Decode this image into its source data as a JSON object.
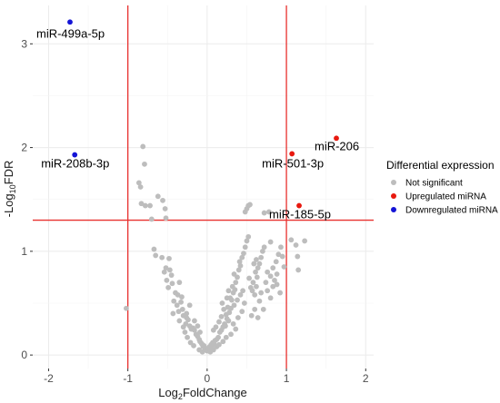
{
  "chart_data": {
    "type": "scatter",
    "xlabel": {
      "base": "Log",
      "sub": "2",
      "rest": "FoldChange"
    },
    "ylabel": {
      "prefix": "-Log",
      "sub": "10",
      "rest": "FDR"
    },
    "xlim": [
      -2.2,
      2.1
    ],
    "ylim": [
      -0.13,
      3.37
    ],
    "xticks": [
      -2,
      -1,
      0,
      1,
      2
    ],
    "yticks": [
      0,
      1,
      2,
      3
    ],
    "grid": true,
    "thresholds": {
      "x": [
        -1,
        1
      ],
      "y": [
        1.3
      ],
      "color": "#e8312f"
    },
    "legend": {
      "title": "Differential expression",
      "position": "right",
      "entries": [
        {
          "label": "Not significant",
          "color": "#bdbdbd"
        },
        {
          "label": "Upregulated miRNA",
          "color": "#e8190f"
        },
        {
          "label": "Downregulated miRNA",
          "color": "#1414d6"
        }
      ]
    },
    "series": [
      {
        "name": "Not significant",
        "color": "#bdbdbd",
        "points": [
          [
            -1.02,
            0.45
          ],
          [
            -0.81,
            2.01
          ],
          [
            -0.79,
            1.84
          ],
          [
            -0.86,
            1.66
          ],
          [
            -0.84,
            1.62
          ],
          [
            -0.83,
            1.46
          ],
          [
            -0.78,
            1.44
          ],
          [
            -0.72,
            1.44
          ],
          [
            -0.7,
            1.31
          ],
          [
            -0.62,
            1.53
          ],
          [
            -0.56,
            1.49
          ],
          [
            -0.53,
            1.41
          ],
          [
            -0.52,
            1.32
          ],
          [
            -0.67,
            1.02
          ],
          [
            -0.65,
            0.96
          ],
          [
            -0.57,
            0.94
          ],
          [
            -0.48,
            0.93
          ],
          [
            -0.52,
            0.84
          ],
          [
            -0.47,
            0.82
          ],
          [
            -0.54,
            0.8
          ],
          [
            -0.51,
            0.72
          ],
          [
            -0.44,
            0.69
          ],
          [
            -0.49,
            0.65
          ],
          [
            -0.4,
            0.6
          ],
          [
            -0.37,
            0.58
          ],
          [
            -0.42,
            0.52
          ],
          [
            -0.33,
            0.51
          ],
          [
            -0.31,
            0.44
          ],
          [
            -0.36,
            0.42
          ],
          [
            -0.3,
            0.38
          ],
          [
            -0.26,
            0.36
          ],
          [
            -0.24,
            0.34
          ],
          [
            -0.27,
            0.3
          ],
          [
            -0.22,
            0.28
          ],
          [
            -0.2,
            0.25
          ],
          [
            -0.18,
            0.26
          ],
          [
            -0.16,
            0.24
          ],
          [
            -0.14,
            0.2
          ],
          [
            -0.12,
            0.18
          ],
          [
            -0.1,
            0.15
          ],
          [
            -0.09,
            0.13
          ],
          [
            -0.07,
            0.11
          ],
          [
            -0.06,
            0.1
          ],
          [
            -0.05,
            0.08
          ],
          [
            -0.04,
            0.09
          ],
          [
            -0.03,
            0.07
          ],
          [
            -0.02,
            0.06
          ],
          [
            -0.01,
            0.05
          ],
          [
            0.0,
            0.04
          ],
          [
            0.01,
            0.05
          ],
          [
            0.02,
            0.06
          ],
          [
            0.03,
            0.08
          ],
          [
            0.04,
            0.07
          ],
          [
            0.05,
            0.1
          ],
          [
            0.06,
            0.09
          ],
          [
            0.07,
            0.12
          ],
          [
            0.09,
            0.1
          ],
          [
            0.1,
            0.14
          ],
          [
            0.12,
            0.15
          ],
          [
            0.14,
            0.17
          ],
          [
            0.16,
            0.22
          ],
          [
            0.18,
            0.24
          ],
          [
            0.2,
            0.27
          ],
          [
            0.22,
            0.3
          ],
          [
            0.23,
            0.28
          ],
          [
            0.25,
            0.35
          ],
          [
            0.27,
            0.33
          ],
          [
            0.24,
            0.39
          ],
          [
            0.28,
            0.41
          ],
          [
            0.26,
            0.46
          ],
          [
            0.3,
            0.45
          ],
          [
            0.31,
            0.53
          ],
          [
            0.29,
            0.55
          ],
          [
            0.33,
            0.6
          ],
          [
            0.35,
            0.63
          ],
          [
            0.32,
            0.66
          ],
          [
            0.36,
            0.7
          ],
          [
            0.38,
            0.75
          ],
          [
            0.34,
            0.78
          ],
          [
            0.4,
            0.82
          ],
          [
            0.42,
            0.86
          ],
          [
            0.41,
            0.9
          ],
          [
            0.44,
            0.94
          ],
          [
            0.46,
            0.98
          ],
          [
            0.48,
            1.04
          ],
          [
            0.5,
            1.1
          ],
          [
            0.52,
            1.14
          ],
          [
            0.5,
            1.41
          ],
          [
            0.48,
            1.38
          ],
          [
            0.52,
            1.44
          ],
          [
            0.54,
            1.45
          ],
          [
            0.55,
            0.65
          ],
          [
            0.57,
            0.62
          ],
          [
            0.6,
            0.58
          ],
          [
            0.62,
            0.66
          ],
          [
            0.63,
            0.75
          ],
          [
            0.64,
            0.84
          ],
          [
            0.66,
            0.88
          ],
          [
            0.68,
            0.94
          ],
          [
            0.7,
            1.0
          ],
          [
            0.72,
            1.04
          ],
          [
            0.72,
            1.37
          ],
          [
            0.78,
            1.38
          ],
          [
            0.8,
            1.09
          ],
          [
            0.8,
            0.55
          ],
          [
            0.83,
            0.66
          ],
          [
            0.85,
            0.72
          ],
          [
            0.83,
            0.84
          ],
          [
            0.87,
            0.9
          ],
          [
            0.9,
            0.97
          ],
          [
            0.93,
            1.04
          ],
          [
            0.95,
            0.95
          ],
          [
            0.97,
            0.85
          ],
          [
            1.06,
            1.11
          ],
          [
            1.12,
            1.06
          ],
          [
            1.14,
            0.95
          ],
          [
            1.15,
            0.82
          ],
          [
            1.23,
            1.1
          ],
          [
            -0.16,
            0.33
          ],
          [
            -0.12,
            0.28
          ],
          [
            -0.09,
            0.22
          ],
          [
            0.08,
            0.24
          ],
          [
            0.11,
            0.27
          ],
          [
            0.15,
            0.32
          ],
          [
            0.18,
            0.37
          ],
          [
            0.21,
            0.44
          ],
          [
            0.19,
            0.5
          ],
          [
            0.25,
            0.55
          ],
          [
            0.27,
            0.62
          ],
          [
            0.34,
            0.48
          ],
          [
            0.38,
            0.53
          ],
          [
            0.42,
            0.58
          ],
          [
            0.44,
            0.42
          ],
          [
            0.39,
            0.36
          ],
          [
            0.47,
            0.5
          ],
          [
            0.45,
            0.62
          ],
          [
            0.53,
            0.74
          ],
          [
            0.58,
            0.7
          ],
          [
            0.61,
            0.8
          ],
          [
            0.66,
            0.52
          ],
          [
            0.71,
            0.44
          ],
          [
            -0.28,
            0.22
          ],
          [
            -0.25,
            0.17
          ],
          [
            -0.21,
            0.12
          ],
          [
            -0.17,
            0.09
          ],
          [
            -0.1,
            0.05
          ],
          [
            -0.06,
            0.03
          ],
          [
            0.04,
            0.03
          ],
          [
            0.08,
            0.05
          ],
          [
            0.12,
            0.08
          ],
          [
            0.15,
            0.1
          ],
          [
            0.2,
            0.13
          ],
          [
            0.24,
            0.17
          ],
          [
            -0.32,
            0.56
          ],
          [
            -0.38,
            0.48
          ],
          [
            -0.35,
            0.7
          ],
          [
            -0.45,
            0.77
          ],
          [
            -0.43,
            0.4
          ],
          [
            -0.35,
            0.33
          ],
          [
            -0.3,
            0.27
          ],
          [
            -0.26,
            0.4
          ],
          [
            -0.22,
            0.48
          ],
          [
            0.3,
            0.2
          ],
          [
            0.36,
            0.25
          ],
          [
            0.33,
            0.3
          ],
          [
            0.56,
            0.38
          ],
          [
            0.6,
            0.44
          ],
          [
            0.64,
            0.36
          ],
          [
            0.68,
            0.6
          ],
          [
            0.74,
            0.7
          ],
          [
            0.76,
            0.62
          ],
          [
            0.76,
            0.8
          ],
          [
            0.8,
            0.76
          ],
          [
            0.88,
            0.68
          ],
          [
            0.88,
            0.78
          ],
          [
            0.92,
            0.6
          ],
          [
            0.59,
            0.88
          ],
          [
            0.62,
            0.92
          ]
        ]
      },
      {
        "name": "Upregulated miRNA",
        "color": "#e8190f",
        "points": [
          [
            1.63,
            2.09
          ],
          [
            1.07,
            1.94
          ],
          [
            1.16,
            1.44
          ]
        ]
      },
      {
        "name": "Downregulated miRNA",
        "color": "#1414d6",
        "points": [
          [
            -1.73,
            3.21
          ],
          [
            -1.67,
            1.93
          ]
        ]
      }
    ],
    "annotations": [
      {
        "text": "miR-499a-5p",
        "x": -1.73,
        "y": 3.21,
        "anchor": "start",
        "dx": -37,
        "dy": 17
      },
      {
        "text": "miR-208b-3p",
        "x": -1.67,
        "y": 1.93,
        "anchor": "start",
        "dx": -37,
        "dy": 14
      },
      {
        "text": "miR-206",
        "x": 1.63,
        "y": 2.09,
        "anchor": "start",
        "dx": -24,
        "dy": 13
      },
      {
        "text": "miR-501-3p",
        "x": 1.07,
        "y": 1.94,
        "anchor": "start",
        "dx": -33,
        "dy": 15
      },
      {
        "text": "miR-185-5p",
        "x": 1.16,
        "y": 1.44,
        "anchor": "start",
        "dx": -33,
        "dy": 14
      }
    ]
  }
}
